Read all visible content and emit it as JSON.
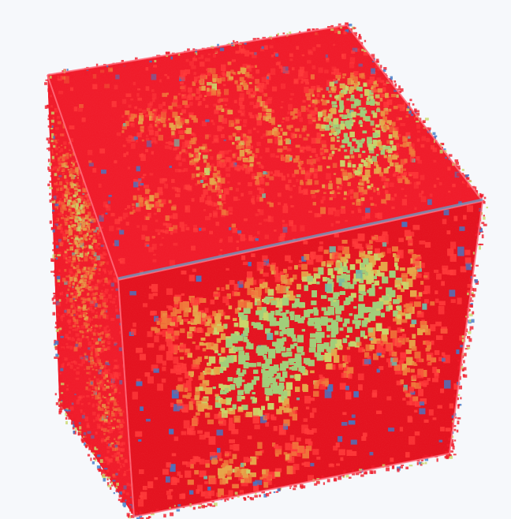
{
  "viewer": {
    "background": "#f6f8fb",
    "palette": {
      "base": "#f01b2a",
      "deep": "#e4121f",
      "hot": "#ff3a3a",
      "orange": "#f07a3a",
      "amber": "#e6a84a",
      "yellow_green": "#c9d76a",
      "green": "#9fd07a",
      "teal": "#6fb8a6",
      "blue": "#3f78c8",
      "edge": "#ff6b7a"
    },
    "cube": {
      "faces": [
        "top",
        "front",
        "left"
      ],
      "texture": "volumetric-scalar-field"
    }
  }
}
